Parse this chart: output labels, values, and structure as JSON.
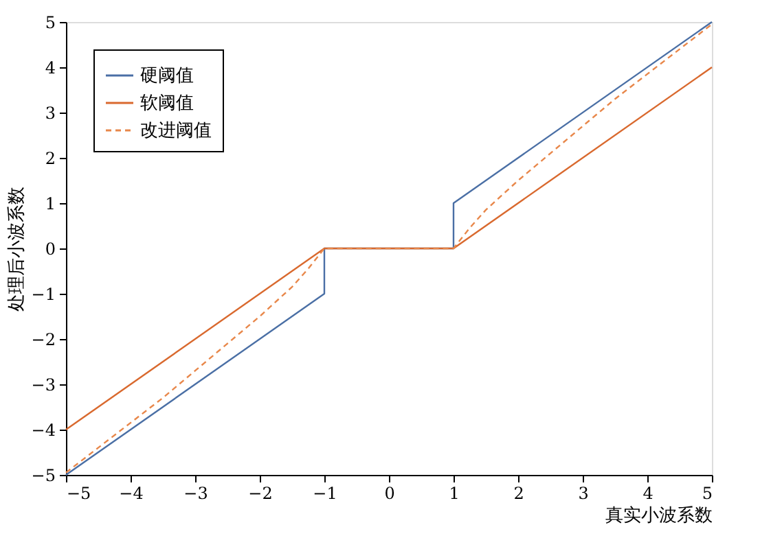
{
  "chart_data": {
    "type": "line",
    "xlabel": "真实小波系数",
    "ylabel": "处理后小波系数",
    "xlim": [
      -5,
      5
    ],
    "ylim": [
      -5,
      5
    ],
    "xticks": [
      -5,
      -4,
      -3,
      -2,
      -1,
      0,
      1,
      2,
      3,
      4,
      5
    ],
    "yticks": [
      -5,
      -4,
      -3,
      -2,
      -1,
      0,
      1,
      2,
      3,
      4,
      5
    ],
    "grid": false,
    "legend": "top left",
    "marker": "none",
    "series": [
      {
        "name": "硬阈值",
        "color": "#4a6fa5",
        "line_style": "solid",
        "x": [
          -5,
          -1,
          -1,
          1,
          1,
          5
        ],
        "values": [
          -5,
          -1,
          0,
          0,
          1,
          5
        ]
      },
      {
        "name": "软阈值",
        "color": "#d9692e",
        "line_style": "solid",
        "x": [
          -5,
          -1,
          1,
          5
        ],
        "values": [
          -4,
          0,
          0,
          4
        ]
      },
      {
        "name": "改进阈值",
        "color": "#e8874a",
        "line_style": "dashed",
        "x": [
          -5,
          -4.5,
          -4,
          -3.5,
          -3,
          -2.5,
          -2,
          -1.5,
          -1.25,
          -1,
          1,
          1.25,
          1.5,
          2,
          2.5,
          3,
          3.5,
          4,
          4.5,
          5
        ],
        "values": [
          -4.95,
          -4.4,
          -3.85,
          -3.3,
          -2.7,
          -2.1,
          -1.5,
          -0.85,
          -0.45,
          0,
          0,
          0.45,
          0.85,
          1.5,
          2.1,
          2.7,
          3.3,
          3.85,
          4.4,
          4.95
        ]
      }
    ]
  }
}
